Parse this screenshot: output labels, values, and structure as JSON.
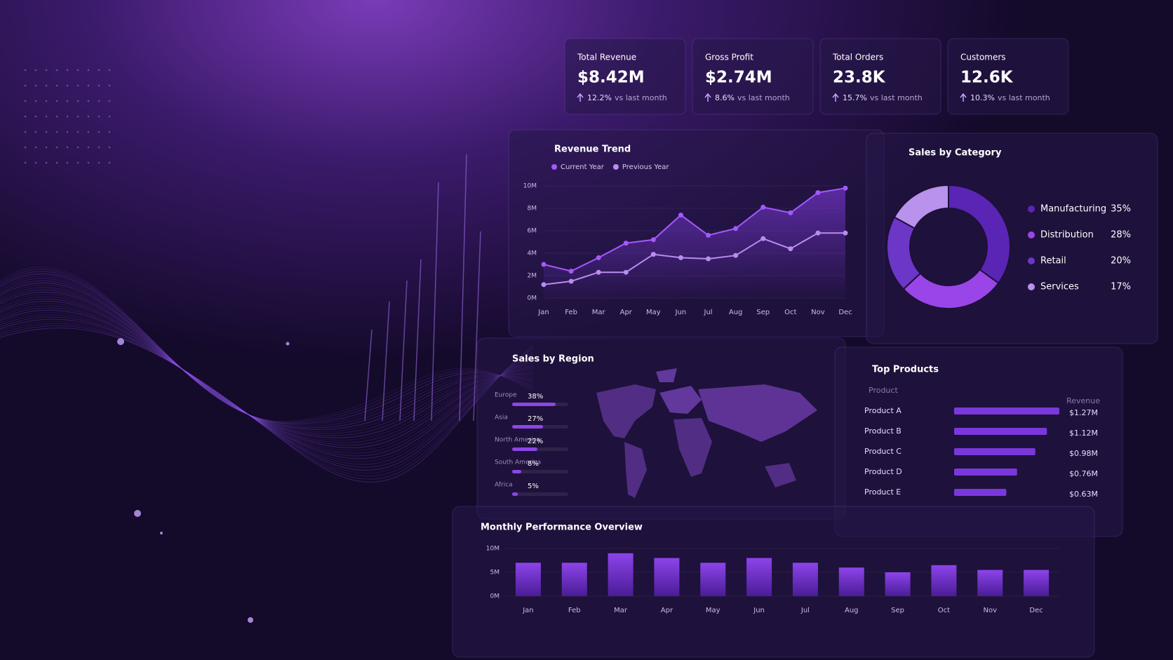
{
  "kpis": [
    {
      "title": "Total Revenue",
      "value": "$8.42M",
      "change": "12.2%",
      "note": "vs last month"
    },
    {
      "title": "Gross Profit",
      "value": "$2.74M",
      "change": "8.6%",
      "note": "vs last month"
    },
    {
      "title": "Total Orders",
      "value": "23.8K",
      "change": "15.7%",
      "note": "vs last month"
    },
    {
      "title": "Customers",
      "value": "12.6K",
      "change": "10.3%",
      "note": "vs last month"
    }
  ],
  "chart_data": [
    {
      "type": "line",
      "title": "Revenue Trend",
      "categories": [
        "Jan",
        "Feb",
        "Mar",
        "Apr",
        "May",
        "Jun",
        "Jul",
        "Aug",
        "Sep",
        "Oct",
        "Nov",
        "Dec"
      ],
      "series": [
        {
          "name": "Current Year",
          "color": "#a259ff",
          "values": [
            3.0,
            2.4,
            3.6,
            4.9,
            5.2,
            7.4,
            5.6,
            6.2,
            8.1,
            7.6,
            9.4,
            9.8
          ]
        },
        {
          "name": "Previous Year",
          "color": "#b98cf0",
          "values": [
            1.2,
            1.5,
            2.3,
            2.3,
            3.9,
            3.6,
            3.5,
            3.8,
            5.3,
            4.4,
            5.8,
            5.8
          ]
        }
      ],
      "ylim": [
        0,
        10
      ],
      "yticks": [
        {
          "value": 0,
          "label": "0M"
        },
        {
          "value": 2,
          "label": "2M"
        },
        {
          "value": 4,
          "label": "4M"
        },
        {
          "value": 6,
          "label": "6M"
        },
        {
          "value": 8,
          "label": "8M"
        },
        {
          "value": 10,
          "label": "10M"
        }
      ]
    },
    {
      "type": "pie",
      "title": "Sales by Category",
      "categories": [
        "Manufacturing",
        "Distribution",
        "Retail",
        "Services"
      ],
      "values": [
        35,
        28,
        20,
        17
      ],
      "value_labels": [
        "35%",
        "28%",
        "20%",
        "17%"
      ],
      "colors": [
        "#5a24b4",
        "#9a45e8",
        "#6c36c6",
        "#b892ec"
      ]
    },
    {
      "type": "hbar",
      "title": "Sales by Region",
      "categories": [
        "Europe",
        "Asia",
        "North America",
        "South America",
        "Africa"
      ],
      "values": [
        38,
        27,
        22,
        8,
        5
      ],
      "value_labels": [
        "38%",
        "27%",
        "22%",
        "8%",
        "5%"
      ],
      "color": "#8c45e6"
    },
    {
      "type": "hbar-table",
      "title": "Top Products",
      "column_labels": [
        "Product",
        "Revenue"
      ],
      "categories": [
        "Product A",
        "Product B",
        "Product C",
        "Product D",
        "Product E"
      ],
      "values": [
        1.27,
        1.12,
        0.98,
        0.76,
        0.63
      ],
      "value_labels": [
        "$1.27M",
        "$1.12M",
        "$0.98M",
        "$0.76M",
        "$0.63M"
      ],
      "color": "#7a38dc"
    },
    {
      "type": "bar",
      "title": "Monthly Performance Overview",
      "categories": [
        "Jan",
        "Feb",
        "Mar",
        "Apr",
        "May",
        "Jun",
        "Jul",
        "Aug",
        "Sep",
        "Oct",
        "Nov",
        "Dec"
      ],
      "values": [
        7,
        7,
        9,
        8,
        7,
        8,
        7,
        6,
        5,
        6.5,
        5.5,
        5.5
      ],
      "ylim": [
        0,
        10
      ],
      "yticks": [
        {
          "value": 0,
          "label": "0M"
        },
        {
          "value": 5,
          "label": "5M"
        },
        {
          "value": 10,
          "label": "10M"
        }
      ]
    }
  ]
}
